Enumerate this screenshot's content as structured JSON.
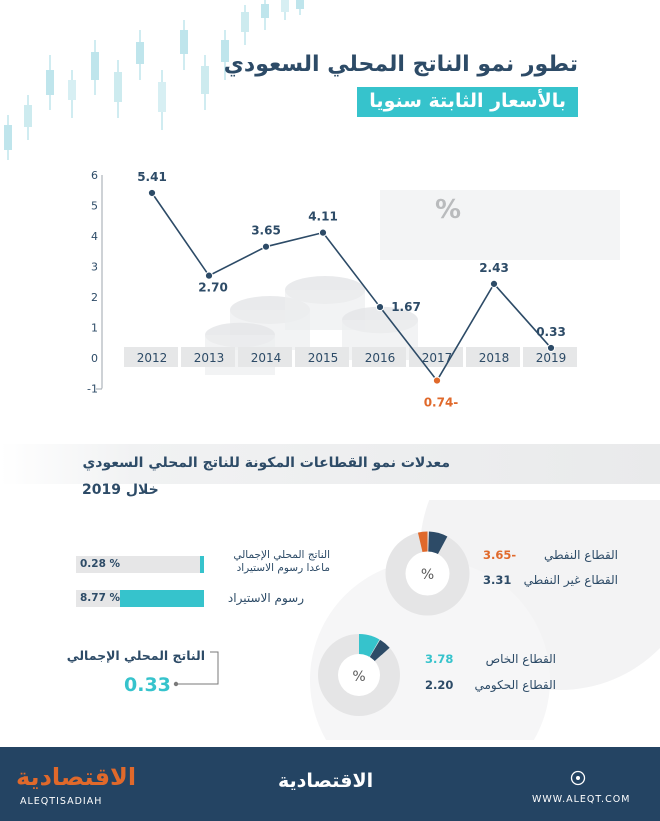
{
  "title": "تطور نمو الناتج المحلي السعودي",
  "subtitle": "بالأسعار الثابتة سنويا",
  "percent_symbol": "%",
  "chart_data": {
    "type": "line",
    "x": [
      "2012",
      "2013",
      "2014",
      "2015",
      "2016",
      "2017",
      "2018",
      "2019"
    ],
    "values": [
      5.41,
      2.7,
      3.65,
      4.11,
      1.67,
      -0.74,
      2.43,
      0.33
    ],
    "value_labels": [
      "5.41",
      "2.70",
      "3.65",
      "4.11",
      "1.67",
      "0.74-",
      "2.43",
      "0.33"
    ],
    "y_ticks": [
      "6",
      "5",
      "4",
      "3",
      "2",
      "1",
      "0",
      "-1"
    ],
    "ylim": [
      -1,
      6
    ],
    "negative_color": "#e0692b",
    "line_color": "#2d4b67",
    "grid": false
  },
  "sectors": {
    "title": "معدلات نمو القطاعات المكونة للناتج المحلي السعودي",
    "subtitle": "خلال 2019",
    "oil_label": "القطاع النفطي",
    "oil_value": "3.65-",
    "nonoil_label": "القطاع غير النفطي",
    "nonoil_value": "3.31",
    "private_label": "القطاع الخاص",
    "private_value": "3.78",
    "gov_label": "القطاع الحكومي",
    "gov_value": "2.20",
    "donut_center": "%"
  },
  "bars": {
    "gdp_ex_label_line1": "الناتج المحلي الإجمالي",
    "gdp_ex_label_line2": "ماعدا رسوم الاستيراد",
    "gdp_ex_value": "0.28 %",
    "gdp_ex_fraction": 0.032,
    "import_label": "رسوم الاستيراد",
    "import_value": "8.77 %",
    "import_fraction": 1.0
  },
  "gdp_total": {
    "label": "الناتج المحلي الإجمالي",
    "value": "0.33"
  },
  "footer": {
    "logo_left": "الاقتصادية",
    "handle": "ALEQTISADIAH",
    "logo_center": "الاقتصادية",
    "website": "WWW.ALEQT.COM"
  },
  "colors": {
    "navy": "#2d4b67",
    "teal": "#36c3cc",
    "orange": "#e0692b",
    "footer_bg": "#244463"
  }
}
